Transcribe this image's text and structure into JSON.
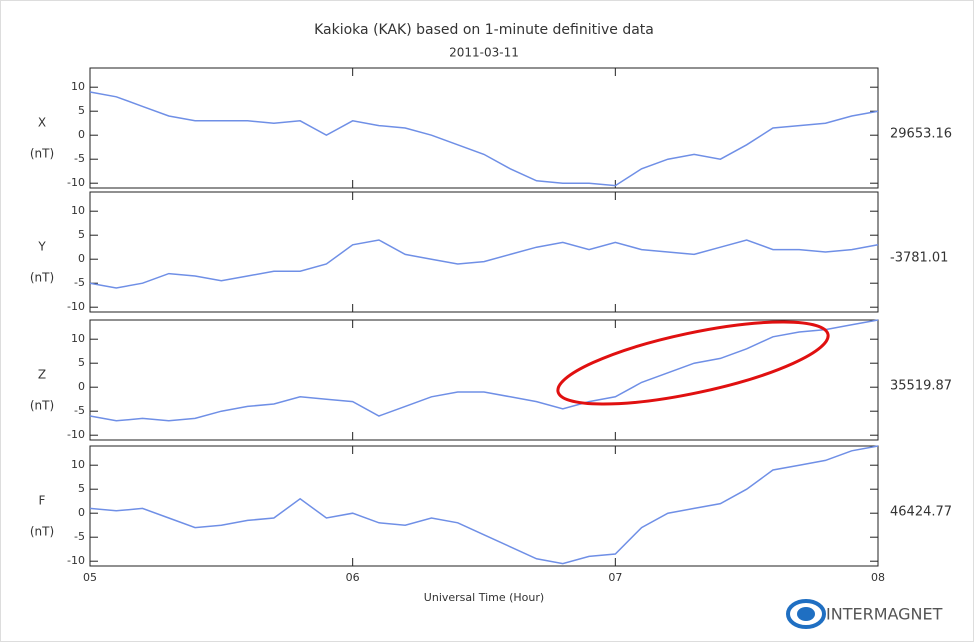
{
  "title": "Kakioka (KAK) based on 1-minute definitive data",
  "subtitle": "2011-03-11",
  "x_label": "Universal Time (Hour)",
  "logo": "INTERMAGNET",
  "chart_data": [
    {
      "type": "line",
      "y_label": "X",
      "unit_label": "(nT)",
      "baseline": 29653.16,
      "color": "#6f8fe6",
      "xlim": [
        5,
        8
      ],
      "xticks": [
        {
          "value": 5,
          "label": "05"
        },
        {
          "value": 6,
          "label": "06"
        },
        {
          "value": 7,
          "label": "07"
        },
        {
          "value": 8,
          "label": "08"
        }
      ],
      "ylim": [
        -11,
        14
      ],
      "yticks": [
        -10,
        -5,
        0,
        5,
        10
      ],
      "x": [
        5.0,
        5.1,
        5.2,
        5.3,
        5.4,
        5.5,
        5.6,
        5.7,
        5.8,
        5.9,
        6.0,
        6.1,
        6.2,
        6.3,
        6.4,
        6.5,
        6.6,
        6.7,
        6.8,
        6.9,
        7.0,
        7.1,
        7.2,
        7.3,
        7.4,
        7.5,
        7.6,
        7.7,
        7.8,
        7.9,
        8.0
      ],
      "values": [
        9,
        8,
        6,
        4,
        3,
        3,
        3,
        2.5,
        3,
        0,
        3,
        2,
        1.5,
        0,
        -2,
        -4,
        -7,
        -9.5,
        -10,
        -10,
        -10.5,
        -7,
        -5,
        -4,
        -5,
        -2,
        1.5,
        2,
        2.5,
        4,
        5
      ]
    },
    {
      "type": "line",
      "y_label": "Y",
      "unit_label": "(nT)",
      "baseline": -3781.01,
      "color": "#6f8fe6",
      "xlim": [
        5,
        8
      ],
      "xticks": [
        {
          "value": 5,
          "label": "05"
        },
        {
          "value": 6,
          "label": "06"
        },
        {
          "value": 7,
          "label": "07"
        },
        {
          "value": 8,
          "label": "08"
        }
      ],
      "ylim": [
        -11,
        14
      ],
      "yticks": [
        -10,
        -5,
        0,
        5,
        10
      ],
      "x": [
        5.0,
        5.1,
        5.2,
        5.3,
        5.4,
        5.5,
        5.6,
        5.7,
        5.8,
        5.9,
        6.0,
        6.1,
        6.2,
        6.3,
        6.4,
        6.5,
        6.6,
        6.7,
        6.8,
        6.9,
        7.0,
        7.1,
        7.2,
        7.3,
        7.4,
        7.5,
        7.6,
        7.7,
        7.8,
        7.9,
        8.0
      ],
      "values": [
        -5,
        -6,
        -5,
        -3,
        -3.5,
        -4.5,
        -3.5,
        -2.5,
        -2.5,
        -1,
        3,
        4,
        1,
        0,
        -1,
        -0.5,
        1,
        2.5,
        3.5,
        2,
        3.5,
        2,
        1.5,
        1,
        2.5,
        4,
        2,
        2,
        1.5,
        2,
        3
      ]
    },
    {
      "type": "line",
      "y_label": "Z",
      "unit_label": "(nT)",
      "baseline": 35519.87,
      "color": "#6f8fe6",
      "xlim": [
        5,
        8
      ],
      "xticks": [
        {
          "value": 5,
          "label": "05"
        },
        {
          "value": 6,
          "label": "06"
        },
        {
          "value": 7,
          "label": "07"
        },
        {
          "value": 8,
          "label": "08"
        }
      ],
      "ylim": [
        -11,
        14
      ],
      "yticks": [
        -10,
        -5,
        0,
        5,
        10
      ],
      "x": [
        5.0,
        5.1,
        5.2,
        5.3,
        5.4,
        5.5,
        5.6,
        5.7,
        5.8,
        5.9,
        6.0,
        6.1,
        6.2,
        6.3,
        6.4,
        6.5,
        6.6,
        6.7,
        6.8,
        6.9,
        7.0,
        7.1,
        7.2,
        7.3,
        7.4,
        7.5,
        7.6,
        7.7,
        7.8,
        7.9,
        8.0
      ],
      "values": [
        -6,
        -7,
        -6.5,
        -7,
        -6.5,
        -5,
        -4,
        -3.5,
        -2,
        -2.5,
        -3,
        -6,
        -4,
        -2,
        -1,
        -1,
        -2,
        -3,
        -4.5,
        -3,
        -2,
        1,
        3,
        5,
        6,
        8,
        10.5,
        11.5,
        12,
        13,
        14
      ]
    },
    {
      "type": "line",
      "y_label": "F",
      "unit_label": "(nT)",
      "baseline": 46424.77,
      "color": "#6f8fe6",
      "xlim": [
        5,
        8
      ],
      "xticks": [
        {
          "value": 5,
          "label": "05"
        },
        {
          "value": 6,
          "label": "06"
        },
        {
          "value": 7,
          "label": "07"
        },
        {
          "value": 8,
          "label": "08"
        }
      ],
      "ylim": [
        -11,
        14
      ],
      "yticks": [
        -10,
        -5,
        0,
        5,
        10
      ],
      "x": [
        5.0,
        5.1,
        5.2,
        5.3,
        5.4,
        5.5,
        5.6,
        5.7,
        5.8,
        5.9,
        6.0,
        6.1,
        6.2,
        6.3,
        6.4,
        6.5,
        6.6,
        6.7,
        6.8,
        6.9,
        7.0,
        7.1,
        7.2,
        7.3,
        7.4,
        7.5,
        7.6,
        7.7,
        7.8,
        7.9,
        8.0
      ],
      "values": [
        1,
        0.5,
        1,
        -1,
        -3,
        -2.5,
        -1.5,
        -1,
        3,
        -1,
        0,
        -2,
        -2.5,
        -1,
        -2,
        -4.5,
        -7,
        -9.5,
        -10.5,
        -9,
        -8.5,
        -3,
        0,
        1,
        2,
        5,
        9,
        10,
        11,
        13,
        14
      ]
    }
  ]
}
